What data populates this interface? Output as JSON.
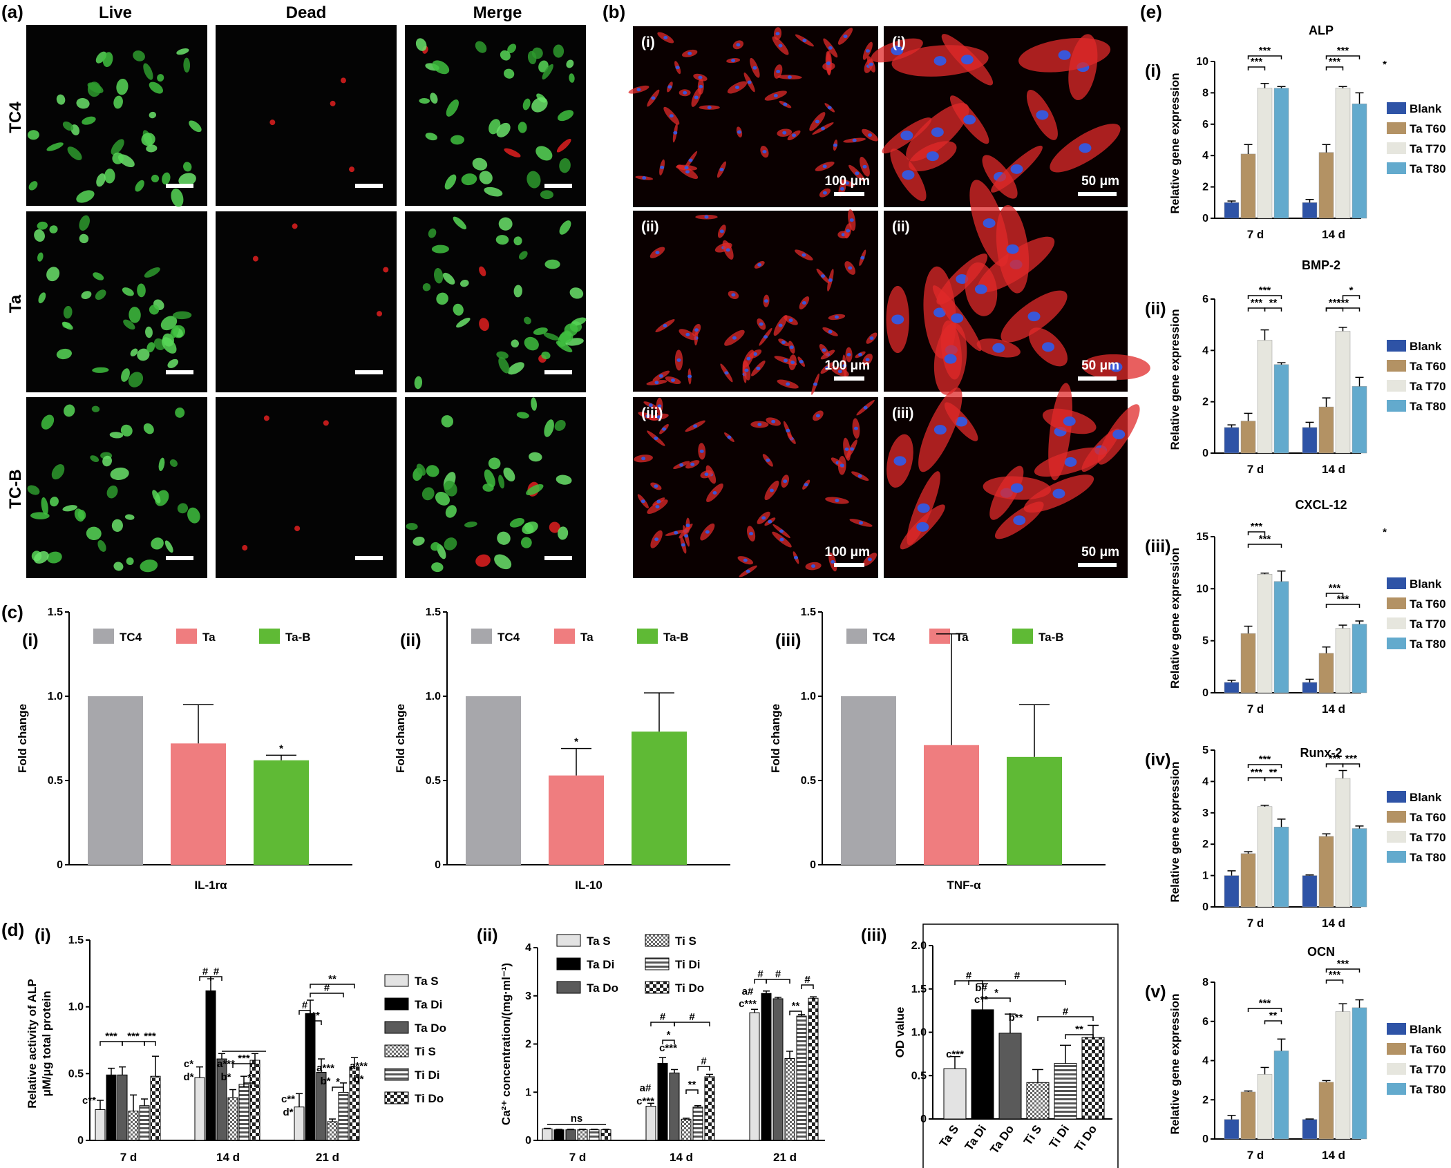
{
  "panels": {
    "a": {
      "label": "(a)",
      "columns": [
        "Live",
        "Dead",
        "Merge"
      ],
      "rows": [
        "TC4",
        "Ta",
        "TC-B"
      ]
    },
    "b": {
      "label": "(b)",
      "row_labels": [
        "(i)",
        "(ii)",
        "(iii)"
      ],
      "scale_left": "100 μm",
      "scale_right": "50 μm"
    },
    "c": {
      "label": "(c)"
    },
    "d": {
      "label": "(d)"
    },
    "e": {
      "label": "(e)"
    }
  },
  "colors": {
    "live": "#3fbf3f",
    "dead": "#e02020",
    "actin": "#e02a2a",
    "nuclei": "#3a56d8",
    "tc4": "#a7a7ab",
    "ta": "#ef7d7f",
    "tab": "#5fba35",
    "blank": "#2e53a6",
    "t60": "#b39264",
    "t70": "#e6e6de",
    "t80": "#63aacd"
  },
  "chart_data": [
    {
      "id": "c-i",
      "type": "bar",
      "panel": "(c)",
      "sub_label": "(i)",
      "categories": [
        "TC4",
        "Ta",
        "Ta-B"
      ],
      "values": [
        1.0,
        0.72,
        0.62
      ],
      "errors": [
        0,
        0.23,
        0.03
      ],
      "xlabel": "IL-1rα",
      "ylabel": "Fold change",
      "ylim": [
        0,
        1.5
      ],
      "yticks": [
        "0",
        "0.5",
        "1.0",
        "1.5"
      ],
      "legend": [
        "TC4",
        "Ta",
        "Ta-B"
      ],
      "marks": [
        "",
        "",
        "*"
      ]
    },
    {
      "id": "c-ii",
      "type": "bar",
      "sub_label": "(ii)",
      "categories": [
        "TC4",
        "Ta",
        "Ta-B"
      ],
      "values": [
        1.0,
        0.53,
        0.79
      ],
      "errors": [
        0,
        0.16,
        0.23
      ],
      "xlabel": "IL-10",
      "ylabel": "Fold change",
      "ylim": [
        0,
        1.5
      ],
      "yticks": [
        "0",
        "0.5",
        "1.0",
        "1.5"
      ],
      "legend": [
        "TC4",
        "Ta",
        "Ta-B"
      ],
      "marks": [
        "",
        "*",
        ""
      ]
    },
    {
      "id": "c-iii",
      "type": "bar",
      "sub_label": "(iii)",
      "categories": [
        "TC4",
        "Ta",
        "Ta-B"
      ],
      "values": [
        1.0,
        0.71,
        0.64
      ],
      "errors": [
        0,
        0.66,
        0.31
      ],
      "xlabel": "TNF-α",
      "ylabel": "Fold change",
      "ylim": [
        0,
        1.5
      ],
      "yticks": [
        "0",
        "0.5",
        "1.0",
        "1.5"
      ],
      "legend": [
        "TC4",
        "Ta",
        "Ta-B"
      ],
      "marks": [
        "",
        "",
        ""
      ]
    },
    {
      "id": "d-i",
      "type": "bar",
      "sub_label": "(i)",
      "categories": [
        "7 d",
        "14 d",
        "21 d"
      ],
      "series": [
        {
          "name": "Ta S",
          "values": [
            0.23,
            0.47,
            0.25
          ],
          "errors": [
            0.07,
            0.08,
            0.1
          ]
        },
        {
          "name": "Ta Di",
          "values": [
            0.49,
            1.12,
            0.95
          ],
          "errors": [
            0.05,
            0.09,
            0.1
          ]
        },
        {
          "name": "Ta Do",
          "values": [
            0.49,
            0.61,
            0.51
          ],
          "errors": [
            0.06,
            0.04,
            0.1
          ]
        },
        {
          "name": "Ti S",
          "values": [
            0.22,
            0.32,
            0.14
          ],
          "errors": [
            0.12,
            0.06,
            0.02
          ]
        },
        {
          "name": "Ti Di",
          "values": [
            0.26,
            0.42,
            0.36
          ],
          "errors": [
            0.05,
            0.06,
            0.07
          ]
        },
        {
          "name": "Ti Do",
          "values": [
            0.48,
            0.6,
            0.55
          ],
          "errors": [
            0.15,
            0.05,
            0.07
          ]
        }
      ],
      "ylabel_lines": [
        "Relative activity of ALP",
        "μM/μg total protein"
      ],
      "ylim": [
        0,
        1.5
      ],
      "yticks": [
        "0",
        "0.5",
        "1.0",
        "1.5"
      ],
      "annotations": [
        "c**",
        "***",
        "***",
        "***",
        "#",
        "#",
        "c*",
        "d*",
        "a***",
        "b*",
        "***",
        "*",
        "#",
        "#",
        "**",
        "**",
        "c**",
        "d*",
        "a***",
        "b*",
        "*",
        "a***",
        "b*"
      ]
    },
    {
      "id": "d-ii",
      "type": "bar",
      "sub_label": "(ii)",
      "categories": [
        "7 d",
        "14 d",
        "21 d"
      ],
      "series": [
        {
          "name": "Ta S",
          "values": [
            0.24,
            0.71,
            2.65
          ],
          "errors": [
            0.01,
            0.06,
            0.07
          ]
        },
        {
          "name": "Ta Di",
          "values": [
            0.22,
            1.6,
            3.05
          ],
          "errors": [
            0.01,
            0.12,
            0.05
          ]
        },
        {
          "name": "Ta Do",
          "values": [
            0.22,
            1.4,
            2.94
          ],
          "errors": [
            0.01,
            0.07,
            0.03
          ]
        },
        {
          "name": "Ti S",
          "values": [
            0.22,
            0.44,
            1.7
          ],
          "errors": [
            0.01,
            0.02,
            0.15
          ]
        },
        {
          "name": "Ti Di",
          "values": [
            0.22,
            0.69,
            2.58
          ],
          "errors": [
            0.01,
            0.03,
            0.03
          ]
        },
        {
          "name": "Ti Do",
          "values": [
            0.22,
            1.32,
            2.95
          ],
          "errors": [
            0.01,
            0.05,
            0.03
          ]
        }
      ],
      "ylabel": "Ca²⁺ concentration/(mg·ml⁻¹)",
      "ylim": [
        0,
        4
      ],
      "yticks": [
        "0",
        "1",
        "2",
        "3",
        "4"
      ],
      "annotations": [
        "ns",
        "#",
        "#",
        "*",
        "c***",
        "**",
        "#",
        "a#",
        "c***",
        "#",
        "#",
        "#",
        "**",
        "a#",
        "c***"
      ]
    },
    {
      "id": "d-iii",
      "type": "bar",
      "sub_label": "(iii)",
      "categories": [
        "Ta S",
        "Ta Di",
        "Ta Do",
        "Ti S",
        "Ti Di",
        "Ti Do"
      ],
      "values": [
        0.58,
        1.26,
        0.99,
        0.42,
        0.64,
        0.94
      ],
      "errors": [
        0.14,
        0.3,
        0.22,
        0.15,
        0.21,
        0.14
      ],
      "ylabel": "OD value",
      "ylim": [
        0,
        2.0
      ],
      "yticks": [
        "0",
        "0.5",
        "1.0",
        "1.5",
        "2.0"
      ],
      "annotations": [
        "c***",
        "b#",
        "c**",
        "b**",
        "#",
        "#",
        "*",
        "#",
        "**"
      ]
    },
    {
      "id": "e-i",
      "type": "bar",
      "sub_label": "(i)",
      "title": "ALP",
      "categories": [
        "7 d",
        "14 d"
      ],
      "series": [
        {
          "name": "Blank",
          "values": [
            1.0,
            1.0
          ],
          "errors": [
            0.1,
            0.2
          ]
        },
        {
          "name": "Ta T60",
          "values": [
            4.1,
            4.2
          ],
          "errors": [
            0.6,
            0.5
          ]
        },
        {
          "name": "Ta T70",
          "values": [
            8.3,
            8.3
          ],
          "errors": [
            0.3,
            0.1
          ]
        },
        {
          "name": "Ta T80",
          "values": [
            8.3,
            7.3
          ],
          "errors": [
            0.1,
            0.7
          ]
        }
      ],
      "ylabel": "Relative gene expression",
      "ylim": [
        0,
        10
      ],
      "yticks": [
        "0",
        "2",
        "4",
        "6",
        "8",
        "10"
      ],
      "annotations": [
        "***",
        "***",
        "***",
        "***",
        "*"
      ]
    },
    {
      "id": "e-ii",
      "type": "bar",
      "sub_label": "(ii)",
      "title": "BMP-2",
      "categories": [
        "7 d",
        "14 d"
      ],
      "series": [
        {
          "name": "Blank",
          "values": [
            1.0,
            1.0
          ],
          "errors": [
            0.1,
            0.2
          ]
        },
        {
          "name": "Ta T60",
          "values": [
            1.25,
            1.8
          ],
          "errors": [
            0.3,
            0.35
          ]
        },
        {
          "name": "Ta T70",
          "values": [
            4.4,
            4.75
          ],
          "errors": [
            0.4,
            0.15
          ]
        },
        {
          "name": "Ta T80",
          "values": [
            3.45,
            2.6
          ],
          "errors": [
            0.07,
            0.35
          ]
        }
      ],
      "ylabel": "Relative gene expression",
      "ylim": [
        0,
        6
      ],
      "yticks": [
        "0",
        "2",
        "4",
        "6"
      ],
      "annotations": [
        "***",
        "***",
        "**",
        "*",
        "***",
        "***"
      ]
    },
    {
      "id": "e-iii",
      "type": "bar",
      "sub_label": "(iii)",
      "title": "CXCL-12",
      "categories": [
        "7 d",
        "14 d"
      ],
      "series": [
        {
          "name": "Blank",
          "values": [
            1.0,
            1.0
          ],
          "errors": [
            0.2,
            0.3
          ]
        },
        {
          "name": "Ta T60",
          "values": [
            5.7,
            3.8
          ],
          "errors": [
            0.7,
            0.6
          ]
        },
        {
          "name": "Ta T70",
          "values": [
            11.4,
            6.2
          ],
          "errors": [
            0.1,
            0.3
          ]
        },
        {
          "name": "Ta T80",
          "values": [
            10.7,
            6.6
          ],
          "errors": [
            1.0,
            0.3
          ]
        }
      ],
      "ylabel": "Relative gene expression",
      "ylim": [
        0,
        15
      ],
      "yticks": [
        "0",
        "5",
        "10",
        "15"
      ],
      "annotations": [
        "***",
        "***",
        "***",
        "***",
        "*"
      ]
    },
    {
      "id": "e-iv",
      "type": "bar",
      "sub_label": "(iv)",
      "title": "Runx-2",
      "categories": [
        "7 d",
        "14 d"
      ],
      "series": [
        {
          "name": "Blank",
          "values": [
            1.0,
            1.0
          ],
          "errors": [
            0.15,
            0.02
          ]
        },
        {
          "name": "Ta T60",
          "values": [
            1.7,
            2.25
          ],
          "errors": [
            0.06,
            0.08
          ]
        },
        {
          "name": "Ta T70",
          "values": [
            3.2,
            4.1
          ],
          "errors": [
            0.04,
            0.25
          ]
        },
        {
          "name": "Ta T80",
          "values": [
            2.55,
            2.5
          ],
          "errors": [
            0.25,
            0.08
          ]
        }
      ],
      "ylabel": "Relative gene expression",
      "ylim": [
        0,
        5
      ],
      "yticks": [
        "0",
        "1",
        "2",
        "3",
        "4",
        "5"
      ],
      "annotations": [
        "***",
        "***",
        "**",
        "***",
        "***"
      ]
    },
    {
      "id": "e-v",
      "type": "bar",
      "sub_label": "(v)",
      "title": "OCN",
      "categories": [
        "7 d",
        "14 d"
      ],
      "series": [
        {
          "name": "Blank",
          "values": [
            1.0,
            1.0
          ],
          "errors": [
            0.2,
            0.02
          ]
        },
        {
          "name": "Ta T60",
          "values": [
            2.4,
            2.9
          ],
          "errors": [
            0.05,
            0.08
          ]
        },
        {
          "name": "Ta T70",
          "values": [
            3.3,
            6.5
          ],
          "errors": [
            0.35,
            0.4
          ]
        },
        {
          "name": "Ta T80",
          "values": [
            4.5,
            6.7
          ],
          "errors": [
            0.6,
            0.4
          ]
        }
      ],
      "ylabel": "Relative gene expression",
      "ylim": [
        0,
        8
      ],
      "yticks": [
        "0",
        "2",
        "4",
        "6",
        "8"
      ],
      "annotations": [
        "***",
        "**",
        "***",
        "***"
      ]
    }
  ]
}
